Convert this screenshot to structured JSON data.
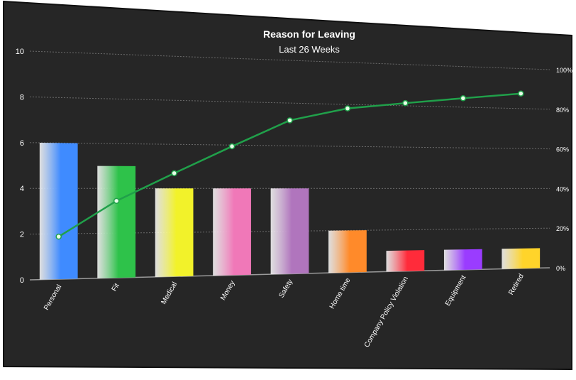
{
  "chart_data": {
    "type": "bar",
    "title": "Reason for Leaving",
    "subtitle": "Last 26 Weeks",
    "categories": [
      "Personal",
      "Fit",
      "Medical",
      "Money",
      "Safety",
      "Home time",
      "Company Policy Violation",
      "Equipment",
      "Retired"
    ],
    "values": [
      6,
      5,
      4,
      4,
      4,
      2,
      1,
      1,
      1
    ],
    "bar_colors": [
      "#3f8bff",
      "#2ec24a",
      "#f2f22a",
      "#f078b8",
      "#b075bd",
      "#ff8a2a",
      "#ff2b3a",
      "#9a3cff",
      "#ffd42a"
    ],
    "ylim": [
      0,
      10
    ],
    "y_ticks": [
      "0",
      "2",
      "4",
      "6",
      "8",
      "10"
    ],
    "cumulative_line": {
      "color": "#20a04a",
      "values": [
        18.75,
        34.4,
        46.9,
        59.4,
        71.9,
        78.1,
        81.3,
        84.4,
        87.5
      ]
    },
    "y2_ticks": [
      "0%",
      "20%",
      "40%",
      "60%",
      "80%",
      "100%"
    ],
    "y2lim": [
      0,
      100
    ],
    "grid": true,
    "background": "#262626"
  }
}
